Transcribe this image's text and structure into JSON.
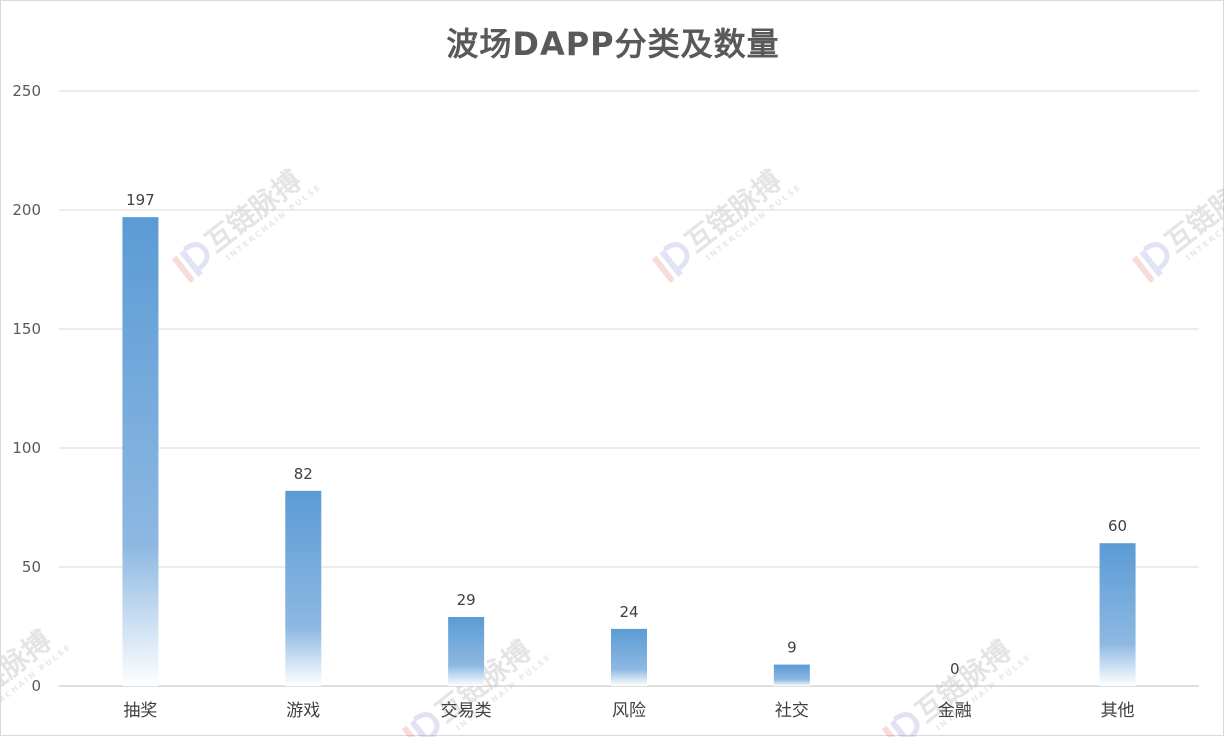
{
  "chart_data": {
    "type": "bar",
    "title": "波场DAPP分类及数量",
    "xlabel": "",
    "ylabel": "",
    "categories": [
      "抽奖",
      "游戏",
      "交易类",
      "风险",
      "社交",
      "金融",
      "其他"
    ],
    "values": [
      197,
      82,
      29,
      24,
      9,
      0,
      60
    ],
    "ylim": [
      0,
      250
    ],
    "yticks": [
      0,
      50,
      100,
      150,
      200,
      250
    ],
    "grid": true,
    "data_labels": true,
    "colors": {
      "bar_top": "#5b9bd5",
      "bar_bottom": "#ffffff",
      "text": "#595959"
    }
  },
  "watermark": {
    "text": "互链脉搏",
    "subtext": "INTERCHAIN PULSE"
  }
}
